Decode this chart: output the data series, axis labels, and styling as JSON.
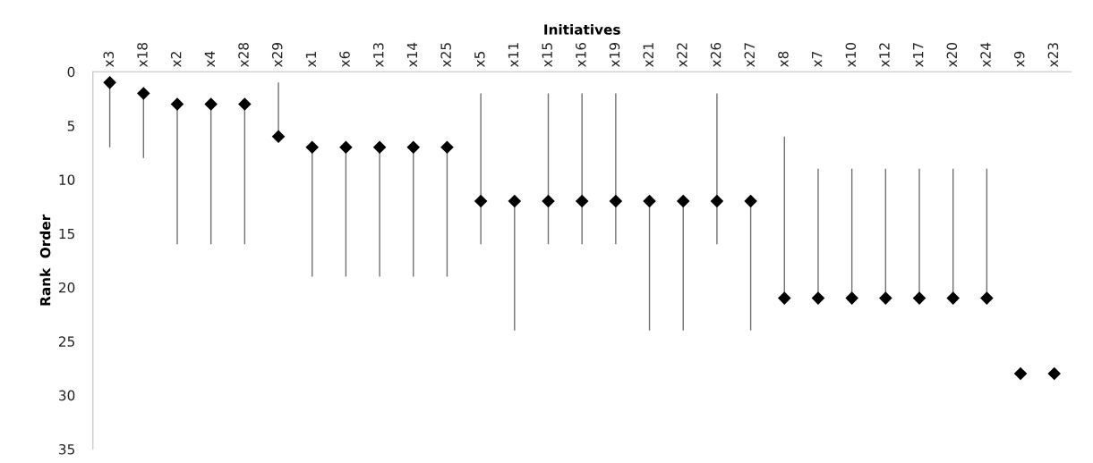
{
  "chart_data": {
    "type": "scatter",
    "xlabel": "Initiatives",
    "ylabel": "Rank  Order",
    "categories": [
      "x3",
      "x18",
      "x2",
      "x4",
      "x28",
      "x29",
      "x1",
      "x6",
      "x13",
      "x14",
      "x25",
      "x5",
      "x11",
      "x15",
      "x16",
      "x19",
      "x21",
      "x22",
      "x26",
      "x27",
      "x8",
      "x7",
      "x10",
      "x12",
      "x17",
      "x20",
      "x24",
      "x9",
      "x23"
    ],
    "values": [
      1,
      2,
      3,
      3,
      3,
      6,
      7,
      7,
      7,
      7,
      7,
      12,
      12,
      12,
      12,
      12,
      12,
      12,
      12,
      12,
      21,
      21,
      21,
      21,
      21,
      21,
      21,
      28,
      28
    ],
    "errors": [
      [
        1,
        7
      ],
      [
        2,
        8
      ],
      [
        3,
        16
      ],
      [
        3,
        16
      ],
      [
        3,
        16
      ],
      [
        1,
        6
      ],
      [
        7,
        19
      ],
      [
        7,
        19
      ],
      [
        7,
        19
      ],
      [
        7,
        19
      ],
      [
        7,
        19
      ],
      [
        2,
        16
      ],
      [
        12,
        24
      ],
      [
        2,
        16
      ],
      [
        2,
        16
      ],
      [
        2,
        16
      ],
      [
        12,
        24
      ],
      [
        12,
        24
      ],
      [
        2,
        16
      ],
      [
        12,
        24
      ],
      [
        6,
        21
      ],
      [
        9,
        21
      ],
      [
        9,
        21
      ],
      [
        9,
        21
      ],
      [
        9,
        21
      ],
      [
        9,
        21
      ],
      [
        9,
        21
      ],
      null,
      null
    ],
    "color": "#000000",
    "marker": "diamond",
    "ylim": [
      35,
      0
    ],
    "yticks": [
      0,
      5,
      10,
      15,
      20,
      25,
      30,
      35
    ],
    "grid": false
  }
}
